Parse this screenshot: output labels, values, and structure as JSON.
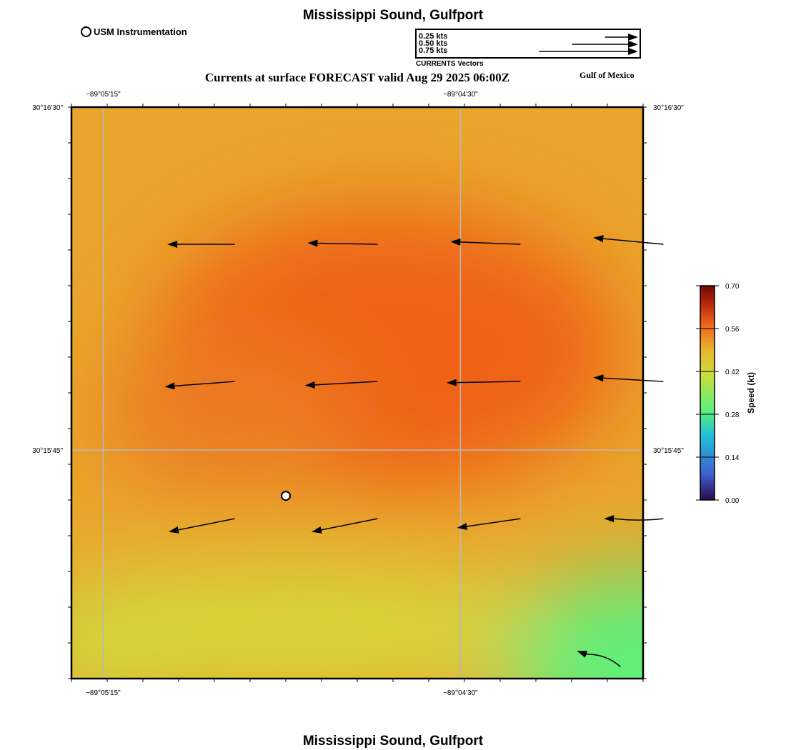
{
  "header": {
    "title": "Mississippi Sound, Gulfport",
    "subtitle": "Currents at surface FORECAST valid Aug 29 2025 06:00Z",
    "region": "Gulf of Mexico",
    "footer_title": "Mississippi Sound, Gulfport"
  },
  "station_legend": {
    "label": "USM Instrumentation"
  },
  "vector_legend": {
    "title": "CURRENTS Vectors",
    "entries": [
      {
        "label": "0.25 kts",
        "speed": 0.25
      },
      {
        "label": "0.50 kts",
        "speed": 0.5
      },
      {
        "label": "0.75 kts",
        "speed": 0.75
      }
    ]
  },
  "map": {
    "lon_ticks": [
      {
        "label": "−89°05'15\"",
        "lon": -89.0875
      },
      {
        "label": "−89°04'30\"",
        "lon": -89.075
      }
    ],
    "lat_ticks": [
      {
        "label": "30°16'30\"",
        "lat": 30.275
      },
      {
        "label": "30°15'45\"",
        "lat": 30.2625
      }
    ],
    "lon_range": [
      -89.08861,
      -89.06861
    ],
    "lat_range": [
      30.25417,
      30.275
    ],
    "station": {
      "lon": -89.08111,
      "lat": 30.26083
    }
  },
  "colorbar": {
    "label": "Speed (kt)",
    "ticks": [
      "0.70",
      "0.56",
      "0.42",
      "0.28",
      "0.14",
      "0.00"
    ],
    "range": [
      0.0,
      0.7
    ],
    "colors": [
      "#2a0a4a",
      "#3f5fd0",
      "#1fc0d8",
      "#5ef07a",
      "#c6df3c",
      "#e8b52e",
      "#ef6219",
      "#b3260c",
      "#6e0a04"
    ]
  },
  "chart_data": {
    "type": "vector-field",
    "units": "kt",
    "vectors": [
      {
        "lon": -89.0829,
        "lat": 30.27,
        "u": -0.51,
        "v": 0.0
      },
      {
        "lon": -89.0779,
        "lat": 30.27,
        "u": -0.53,
        "v": 0.01
      },
      {
        "lon": -89.0729,
        "lat": 30.27,
        "u": -0.53,
        "v": 0.02
      },
      {
        "lon": -89.0679,
        "lat": 30.27,
        "u": -0.53,
        "v": 0.05
      },
      {
        "lon": -89.0829,
        "lat": 30.265,
        "u": -0.53,
        "v": -0.04
      },
      {
        "lon": -89.0779,
        "lat": 30.265,
        "u": -0.55,
        "v": -0.03
      },
      {
        "lon": -89.0729,
        "lat": 30.265,
        "u": -0.56,
        "v": -0.01
      },
      {
        "lon": -89.0679,
        "lat": 30.265,
        "u": -0.53,
        "v": 0.03
      },
      {
        "lon": -89.0829,
        "lat": 30.26,
        "u": -0.5,
        "v": -0.1
      },
      {
        "lon": -89.0779,
        "lat": 30.26,
        "u": -0.5,
        "v": -0.1
      },
      {
        "lon": -89.0729,
        "lat": 30.26,
        "u": -0.48,
        "v": -0.07
      },
      {
        "lon": -89.0679,
        "lat": 30.26,
        "u": -0.45,
        "v": 0.0
      },
      {
        "lon": -89.0694,
        "lat": 30.2546,
        "u": -0.33,
        "v": 0.12
      }
    ]
  }
}
